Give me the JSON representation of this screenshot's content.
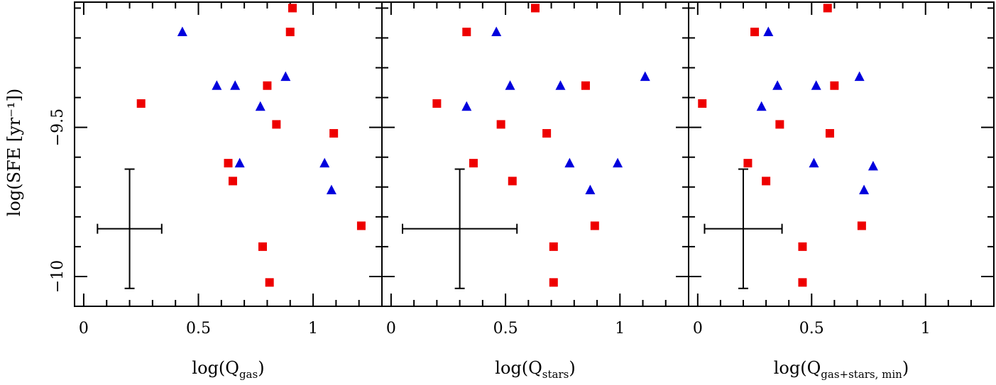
{
  "figure": {
    "ylabel": "log(SFE [yr⁻¹])",
    "yticks": [
      -10,
      -9.5
    ],
    "ytick_labels": [
      "−10",
      "−9.5"
    ],
    "ylim": [
      -10.1,
      -9.08
    ]
  },
  "chart_data": [
    {
      "type": "scatter",
      "xlabel_main": "log(Q",
      "xlabel_sub": "gas",
      "xlabel_close": ")",
      "xlim": [
        -0.04,
        1.3
      ],
      "xticks": [
        0,
        0.5,
        1
      ],
      "xtick_labels": [
        "0",
        "0.5",
        "1"
      ],
      "series": [
        {
          "marker": "square",
          "color": "#ee0000",
          "points": [
            {
              "x": 0.91,
              "y": -9.1
            },
            {
              "x": 0.9,
              "y": -9.18
            },
            {
              "x": 0.8,
              "y": -9.36
            },
            {
              "x": 0.25,
              "y": -9.42
            },
            {
              "x": 0.84,
              "y": -9.49
            },
            {
              "x": 1.09,
              "y": -9.52
            },
            {
              "x": 0.63,
              "y": -9.62
            },
            {
              "x": 0.65,
              "y": -9.68
            },
            {
              "x": 1.21,
              "y": -9.83
            },
            {
              "x": 0.78,
              "y": -9.9
            },
            {
              "x": 0.81,
              "y": -10.02
            }
          ]
        },
        {
          "marker": "triangle",
          "color": "#0000dd",
          "points": [
            {
              "x": 0.43,
              "y": -9.18
            },
            {
              "x": 0.58,
              "y": -9.36
            },
            {
              "x": 0.66,
              "y": -9.36
            },
            {
              "x": 0.88,
              "y": -9.33
            },
            {
              "x": 0.77,
              "y": -9.43
            },
            {
              "x": 0.68,
              "y": -9.62
            },
            {
              "x": 1.05,
              "y": -9.62
            },
            {
              "x": 1.08,
              "y": -9.71
            }
          ]
        }
      ],
      "errorbar": {
        "x": 0.2,
        "y": -9.84,
        "xerr": 0.14,
        "yerr": 0.2
      }
    },
    {
      "type": "scatter",
      "xlabel_main": "log(Q",
      "xlabel_sub": "stars",
      "xlabel_close": ")",
      "xlim": [
        -0.04,
        1.3
      ],
      "xticks": [
        0,
        0.5,
        1
      ],
      "xtick_labels": [
        "0",
        "0.5",
        "1"
      ],
      "series": [
        {
          "marker": "square",
          "color": "#ee0000",
          "points": [
            {
              "x": 0.63,
              "y": -9.1
            },
            {
              "x": 0.33,
              "y": -9.18
            },
            {
              "x": 0.85,
              "y": -9.36
            },
            {
              "x": 0.2,
              "y": -9.42
            },
            {
              "x": 0.48,
              "y": -9.49
            },
            {
              "x": 0.68,
              "y": -9.52
            },
            {
              "x": 0.36,
              "y": -9.62
            },
            {
              "x": 0.53,
              "y": -9.68
            },
            {
              "x": 0.89,
              "y": -9.83
            },
            {
              "x": 0.71,
              "y": -9.9
            },
            {
              "x": 0.71,
              "y": -10.02
            }
          ]
        },
        {
          "marker": "triangle",
          "color": "#0000dd",
          "points": [
            {
              "x": 0.46,
              "y": -9.18
            },
            {
              "x": 0.52,
              "y": -9.36
            },
            {
              "x": 0.74,
              "y": -9.36
            },
            {
              "x": 1.11,
              "y": -9.33
            },
            {
              "x": 0.33,
              "y": -9.43
            },
            {
              "x": 0.78,
              "y": -9.62
            },
            {
              "x": 0.99,
              "y": -9.62
            },
            {
              "x": 0.87,
              "y": -9.71
            }
          ]
        }
      ],
      "errorbar": {
        "x": 0.3,
        "y": -9.84,
        "xerr": 0.25,
        "yerr": 0.2
      }
    },
    {
      "type": "scatter",
      "xlabel_main": "log(Q",
      "xlabel_sub": "gas+stars, min",
      "xlabel_close": ")",
      "xlim": [
        -0.04,
        1.3
      ],
      "xticks": [
        0,
        0.5,
        1
      ],
      "xtick_labels": [
        "0",
        "0.5",
        "1"
      ],
      "series": [
        {
          "marker": "square",
          "color": "#ee0000",
          "points": [
            {
              "x": 0.57,
              "y": -9.1
            },
            {
              "x": 0.25,
              "y": -9.18
            },
            {
              "x": 0.6,
              "y": -9.36
            },
            {
              "x": 0.02,
              "y": -9.42
            },
            {
              "x": 0.36,
              "y": -9.49
            },
            {
              "x": 0.58,
              "y": -9.52
            },
            {
              "x": 0.22,
              "y": -9.62
            },
            {
              "x": 0.3,
              "y": -9.68
            },
            {
              "x": 0.72,
              "y": -9.83
            },
            {
              "x": 0.46,
              "y": -9.9
            },
            {
              "x": 0.46,
              "y": -10.02
            }
          ]
        },
        {
          "marker": "triangle",
          "color": "#0000dd",
          "points": [
            {
              "x": 0.31,
              "y": -9.18
            },
            {
              "x": 0.35,
              "y": -9.36
            },
            {
              "x": 0.52,
              "y": -9.36
            },
            {
              "x": 0.71,
              "y": -9.33
            },
            {
              "x": 0.28,
              "y": -9.43
            },
            {
              "x": 0.51,
              "y": -9.62
            },
            {
              "x": 0.77,
              "y": -9.63
            },
            {
              "x": 0.73,
              "y": -9.71
            }
          ]
        }
      ],
      "errorbar": {
        "x": 0.2,
        "y": -9.84,
        "xerr": 0.17,
        "yerr": 0.2
      }
    }
  ]
}
